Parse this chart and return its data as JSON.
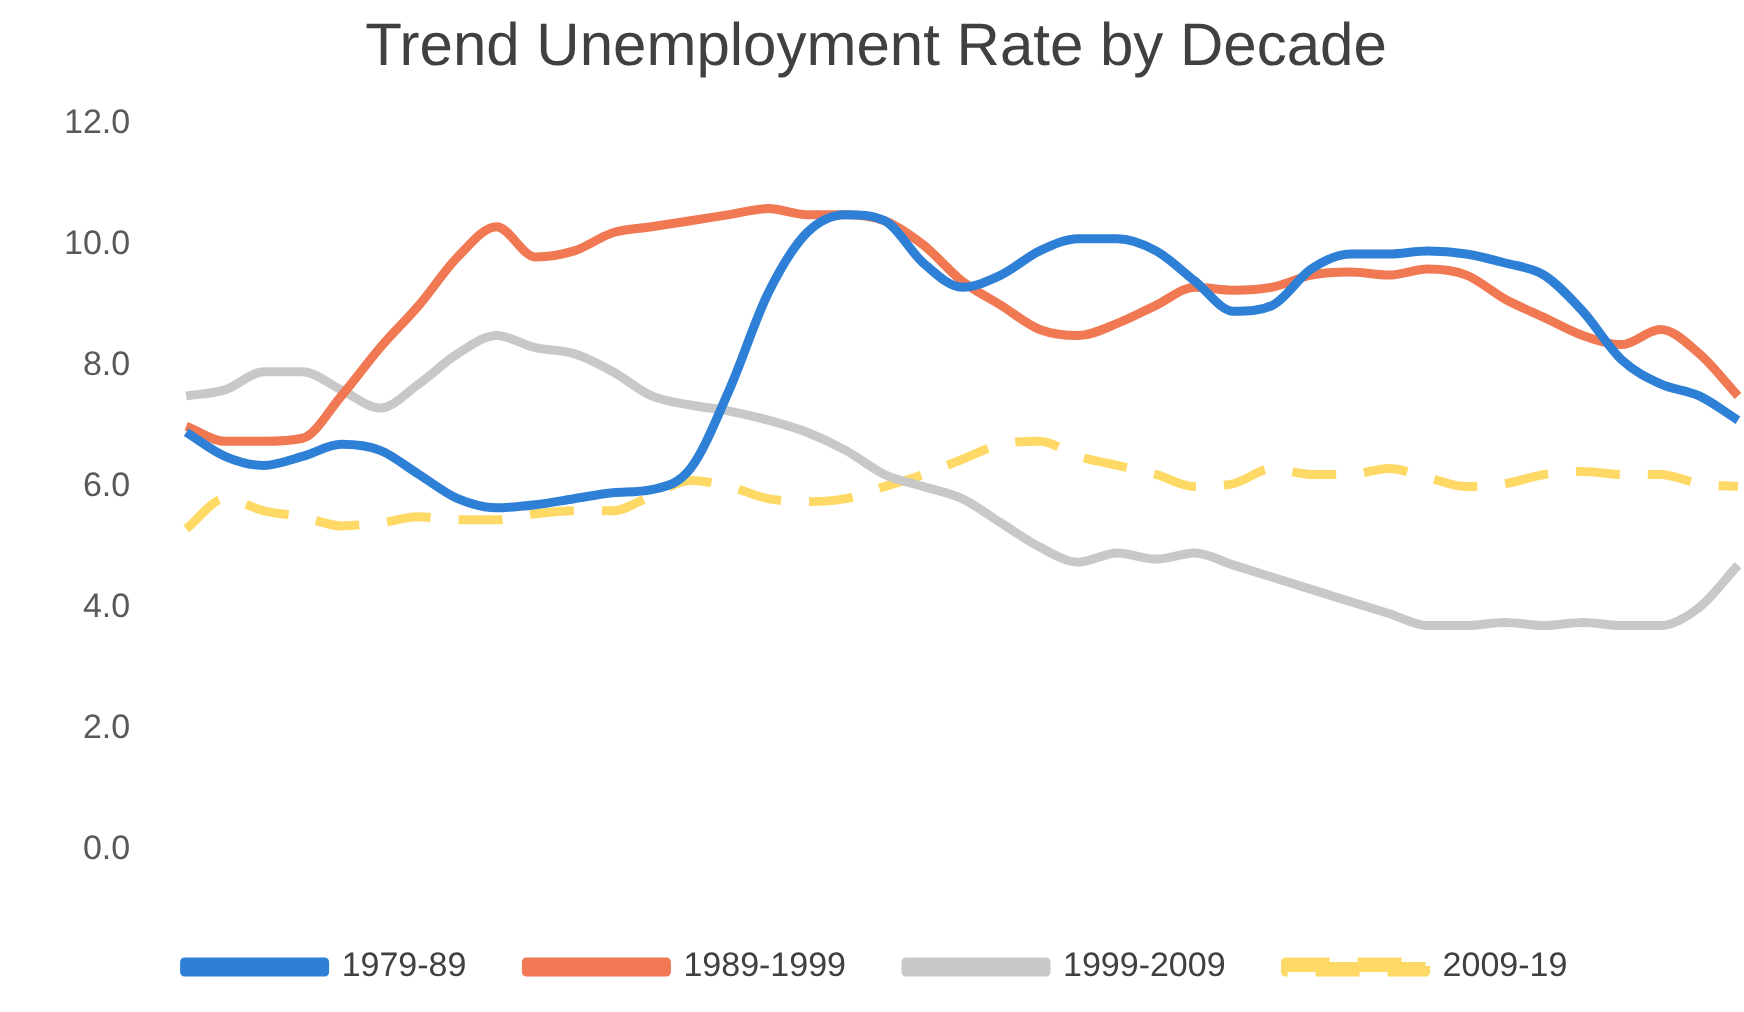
{
  "chart_data": {
    "type": "line",
    "title": "Trend Unemployment Rate by Decade",
    "categories": [
      null,
      null,
      null,
      null,
      null,
      null,
      null,
      null,
      null,
      null,
      null,
      null,
      null,
      null,
      null,
      null,
      null,
      null,
      null,
      null,
      null,
      null,
      null,
      null,
      null,
      null,
      null,
      null,
      null,
      null,
      null,
      null,
      null,
      null,
      null,
      null,
      null,
      null,
      null,
      null,
      null
    ],
    "ylim": [
      0,
      12
    ],
    "yticks": [
      {
        "value": 0,
        "label": "0.0"
      },
      {
        "value": 2,
        "label": "2.0"
      },
      {
        "value": 4,
        "label": "4.0"
      },
      {
        "value": 6,
        "label": "6.0"
      },
      {
        "value": 8,
        "label": "8.0"
      },
      {
        "value": 10,
        "label": "10.0"
      },
      {
        "value": 12,
        "label": "12.0"
      }
    ],
    "grid": false,
    "legend": "bottom",
    "marker": "none",
    "series": [
      {
        "name": "1979-89",
        "color": "#2e7fd6",
        "line_style": "solid",
        "values": [
          6.9,
          6.5,
          6.35,
          6.5,
          6.7,
          6.6,
          6.2,
          5.8,
          5.65,
          5.7,
          5.8,
          5.9,
          5.95,
          6.3,
          7.6,
          9.2,
          10.2,
          10.5,
          10.4,
          9.7,
          9.3,
          9.5,
          9.9,
          10.1,
          10.1,
          9.9,
          9.4,
          8.9,
          9.0,
          9.6,
          9.85,
          9.85,
          9.9,
          9.85,
          9.7,
          9.5,
          8.9,
          8.1,
          7.7,
          7.5,
          7.1
        ]
      },
      {
        "name": "1989-1999",
        "color": "#f07852",
        "line_style": "solid",
        "values": [
          7.0,
          6.75,
          6.75,
          6.8,
          7.5,
          8.3,
          9.0,
          9.8,
          10.3,
          9.8,
          9.9,
          10.2,
          10.3,
          10.4,
          10.5,
          10.6,
          10.5,
          10.5,
          10.4,
          10.0,
          9.4,
          9.0,
          8.6,
          8.5,
          8.7,
          9.0,
          9.3,
          9.25,
          9.3,
          9.5,
          9.55,
          9.5,
          9.6,
          9.5,
          9.1,
          8.8,
          8.5,
          8.35,
          8.6,
          8.2,
          7.5
        ]
      },
      {
        "name": "1999-2009",
        "color": "#c8c8c8",
        "line_style": "solid",
        "values": [
          7.5,
          7.6,
          7.9,
          7.9,
          7.6,
          7.3,
          7.7,
          8.2,
          8.5,
          8.3,
          8.2,
          7.9,
          7.5,
          7.35,
          7.25,
          7.1,
          6.9,
          6.6,
          6.2,
          6.0,
          5.8,
          5.4,
          5.0,
          4.75,
          4.9,
          4.8,
          4.9,
          4.7,
          4.5,
          4.3,
          4.1,
          3.9,
          3.7,
          3.7,
          3.75,
          3.7,
          3.75,
          3.7,
          3.7,
          4.0,
          4.7
        ]
      },
      {
        "name": "2009-19",
        "color": "#ffd966",
        "line_style": "dashed",
        "values": [
          5.3,
          5.8,
          5.6,
          5.5,
          5.35,
          5.4,
          5.5,
          5.45,
          5.45,
          5.55,
          5.6,
          5.6,
          5.85,
          6.1,
          6.0,
          5.8,
          5.75,
          5.8,
          6.0,
          6.2,
          6.45,
          6.7,
          6.75,
          6.5,
          6.35,
          6.2,
          6.0,
          6.05,
          6.3,
          6.2,
          6.2,
          6.3,
          6.15,
          6.0,
          6.05,
          6.2,
          6.25,
          6.2,
          6.2,
          6.05,
          6.0
        ]
      }
    ]
  }
}
